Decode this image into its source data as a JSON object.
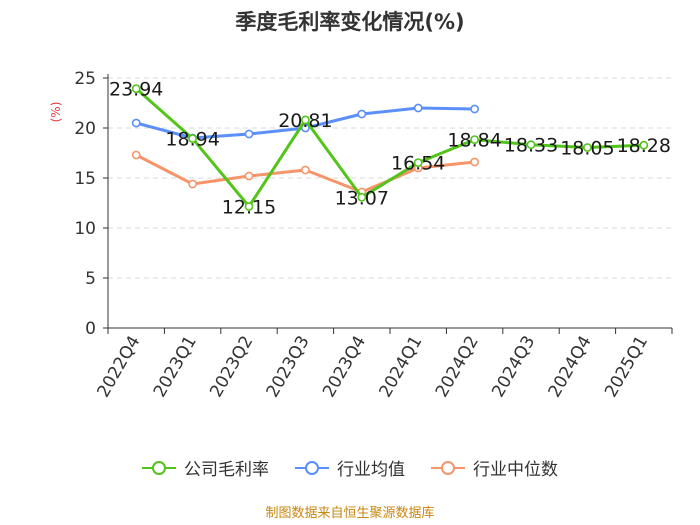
{
  "title": "季度毛利率变化情况(%)",
  "source": "制图数据来自恒生聚源数据库",
  "chart_data": {
    "type": "line",
    "title": "季度毛利率变化情况(%)",
    "ylabel": "(%)",
    "xlabel": "",
    "ylim": [
      0,
      25
    ],
    "yticks": [
      0,
      5,
      10,
      15,
      20,
      25
    ],
    "grid": true,
    "legend_position": "bottom",
    "categories": [
      "2022Q4",
      "2023Q1",
      "2023Q2",
      "2023Q3",
      "2023Q4",
      "2024Q1",
      "2024Q2",
      "2024Q3",
      "2024Q4",
      "2025Q1"
    ],
    "series": [
      {
        "name": "公司毛利率",
        "color": "#52c41a",
        "values": [
          23.94,
          18.94,
          12.15,
          20.81,
          13.07,
          16.54,
          18.84,
          18.33,
          18.05,
          18.28
        ],
        "labels": [
          "23.94",
          "18.94",
          "12.15",
          "20.81",
          "13.07",
          "16.54",
          "18.84",
          "18.33",
          "18.05",
          "18.28"
        ]
      },
      {
        "name": "行业均值",
        "color": "#5b8ff9",
        "values": [
          20.5,
          19.0,
          19.4,
          20.0,
          21.4,
          22.0,
          21.9,
          null,
          null,
          null
        ]
      },
      {
        "name": "行业中位数",
        "color": "#f7956a",
        "values": [
          17.3,
          14.4,
          15.2,
          15.8,
          13.6,
          16.0,
          16.6,
          null,
          null,
          null
        ]
      }
    ]
  },
  "legend": [
    {
      "label": "公司毛利率",
      "color": "#52c41a"
    },
    {
      "label": "行业均值",
      "color": "#5b8ff9"
    },
    {
      "label": "行业中位数",
      "color": "#f7956a"
    }
  ]
}
